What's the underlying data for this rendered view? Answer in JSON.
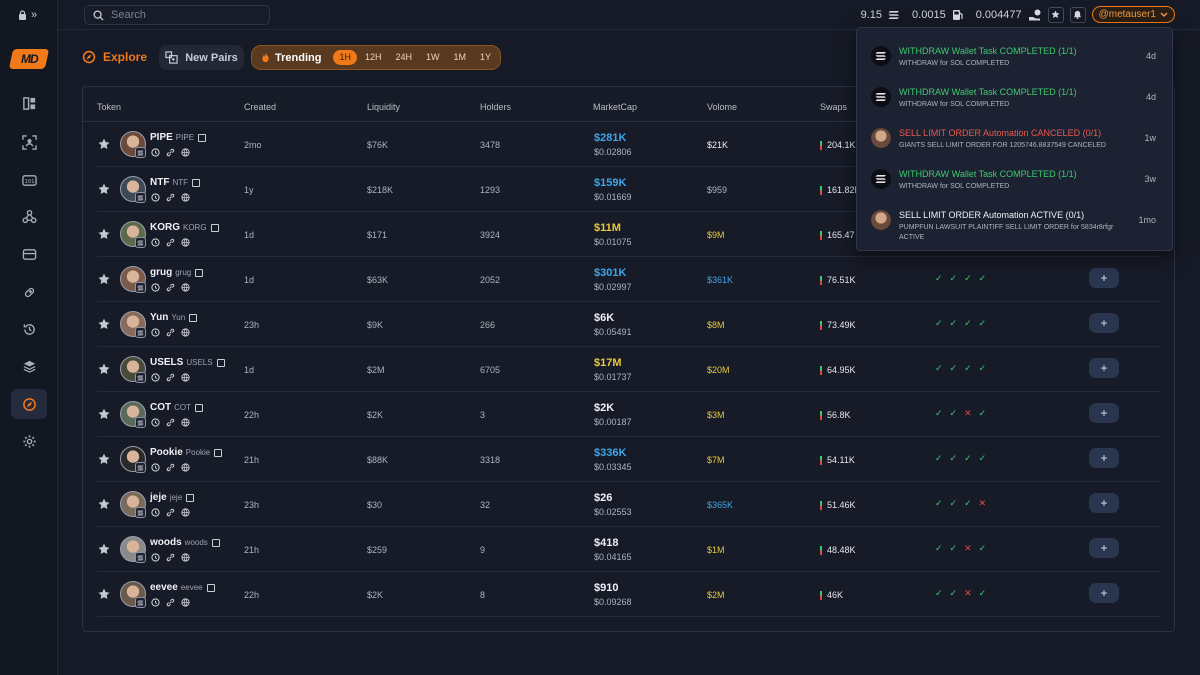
{
  "topbar": {
    "search_placeholder": "Search",
    "stat1": "9.15",
    "stat2": "0.0015",
    "stat3": "0.004477",
    "user": "@metauser1"
  },
  "sidebar": {
    "logo": "MD",
    "items": [
      "dashboard-icon",
      "scan-user-icon",
      "counter-icon",
      "webhook-icon",
      "wallet-icon",
      "pill-icon",
      "history-icon",
      "layers-icon",
      "explore-icon",
      "settings-icon"
    ],
    "active_index": 8
  },
  "toolbar": {
    "explore_label": "Explore",
    "newpairs_label": "New Pairs",
    "trending_label": "Trending",
    "timeframes": [
      "1H",
      "12H",
      "24H",
      "1W",
      "1M",
      "1Y"
    ],
    "active_timeframe": "1H"
  },
  "table": {
    "headers": [
      "Token",
      "Created",
      "Liquidity",
      "Holders",
      "MarketCap",
      "Volome",
      "Swaps"
    ],
    "rows": [
      {
        "name": "PIPE",
        "symbol": "PIPE",
        "created": "2mo",
        "liquidity": "$76K",
        "holders": "3478",
        "mcap": "$281K",
        "mcap_color": "blue",
        "price": "$0.02806",
        "volume": "$21K",
        "volume_color": "white",
        "swaps": "204.1K",
        "checks": [],
        "plus": ""
      },
      {
        "name": "NTF",
        "symbol": "NTF",
        "created": "1y",
        "liquidity": "$218K",
        "holders": "1293",
        "mcap": "$159K",
        "mcap_color": "blue",
        "price": "$0.01669",
        "volume": "$959",
        "volume_color": "gray",
        "swaps": "161.82K",
        "checks": [],
        "plus": ""
      },
      {
        "name": "KORG",
        "symbol": "KORG",
        "created": "1d",
        "liquidity": "$171",
        "holders": "3924",
        "mcap": "$11M",
        "mcap_color": "yellow",
        "price": "$0.01075",
        "volume": "$9M",
        "volume_color": "yellow",
        "swaps": "165.47",
        "checks": [],
        "plus": ""
      },
      {
        "name": "grug",
        "symbol": "grug",
        "created": "1d",
        "liquidity": "$63K",
        "holders": "2052",
        "mcap": "$301K",
        "mcap_color": "blue",
        "price": "$0.02997",
        "volume": "$361K",
        "volume_color": "blue",
        "swaps": "76.51K",
        "checks": [
          "ok",
          "ok",
          "ok",
          "ok"
        ],
        "plus": "+"
      },
      {
        "name": "Yun",
        "symbol": "Yun",
        "created": "23h",
        "liquidity": "$9K",
        "holders": "266",
        "mcap": "$6K",
        "mcap_color": "white",
        "price": "$0.05491",
        "volume": "$8M",
        "volume_color": "yellow",
        "swaps": "73.49K",
        "checks": [
          "ok",
          "ok",
          "ok",
          "ok"
        ],
        "plus": "+"
      },
      {
        "name": "USELS",
        "symbol": "USELS",
        "created": "1d",
        "liquidity": "$2M",
        "holders": "6705",
        "mcap": "$17M",
        "mcap_color": "yellow",
        "price": "$0.01737",
        "volume": "$20M",
        "volume_color": "yellow",
        "swaps": "64.95K",
        "checks": [
          "ok",
          "ok",
          "ok",
          "ok"
        ],
        "plus": "+"
      },
      {
        "name": "COT",
        "symbol": "COT",
        "created": "22h",
        "liquidity": "$2K",
        "holders": "3",
        "mcap": "$2K",
        "mcap_color": "white",
        "price": "$0.00187",
        "volume": "$3M",
        "volume_color": "yellow",
        "swaps": "56.8K",
        "checks": [
          "ok",
          "ok",
          "bad",
          "ok"
        ],
        "plus": "+"
      },
      {
        "name": "Pookie",
        "symbol": "Pookie",
        "created": "21h",
        "liquidity": "$88K",
        "holders": "3318",
        "mcap": "$336K",
        "mcap_color": "blue",
        "price": "$0.03345",
        "volume": "$7M",
        "volume_color": "yellow",
        "swaps": "54.11K",
        "checks": [
          "ok",
          "ok",
          "ok",
          "ok"
        ],
        "plus": "+"
      },
      {
        "name": "jeje",
        "symbol": "jeje",
        "created": "23h",
        "liquidity": "$30",
        "holders": "32",
        "mcap": "$26",
        "mcap_color": "white",
        "price": "$0.02553",
        "volume": "$365K",
        "volume_color": "blue",
        "swaps": "51.46K",
        "checks": [
          "ok",
          "ok",
          "ok",
          "bad"
        ],
        "plus": "+"
      },
      {
        "name": "woods",
        "symbol": "woods",
        "created": "21h",
        "liquidity": "$259",
        "holders": "9",
        "mcap": "$418",
        "mcap_color": "white",
        "price": "$0.04165",
        "volume": "$1M",
        "volume_color": "yellow",
        "swaps": "48.48K",
        "checks": [
          "ok",
          "ok",
          "bad",
          "ok"
        ],
        "plus": "+"
      },
      {
        "name": "eevee",
        "symbol": "eevee",
        "created": "22h",
        "liquidity": "$2K",
        "holders": "8",
        "mcap": "$910",
        "mcap_color": "white",
        "price": "$0.09268",
        "volume": "$2M",
        "volume_color": "yellow",
        "swaps": "46K",
        "checks": [
          "ok",
          "ok",
          "bad",
          "ok"
        ],
        "plus": "+"
      }
    ]
  },
  "notifications": [
    {
      "title": "WITHDRAW Wallet Task COMPLETED (1/1)",
      "sub": "WITHDRAW for SOL COMPLETED",
      "time": "4d",
      "color": "green",
      "icon": "solana"
    },
    {
      "title": "WITHDRAW Wallet Task COMPLETED (1/1)",
      "sub": "WITHDRAW for SOL COMPLETED",
      "time": "4d",
      "color": "green",
      "icon": "solana"
    },
    {
      "title": "SELL LIMIT ORDER Automation CANCELED (0/1)",
      "sub": "GIANTS SELL LIMIT ORDER FOR 1205746.8837549 CANCELED",
      "time": "1w",
      "color": "red",
      "icon": "avatar"
    },
    {
      "title": "WITHDRAW Wallet Task COMPLETED (1/1)",
      "sub": "WITHDRAW for SOL COMPLETED",
      "time": "3w",
      "color": "green",
      "icon": "solana"
    },
    {
      "title": "SELL LIMIT ORDER Automation ACTIVE (0/1)",
      "sub": "PUMPFUN LAWSUIT PLAINTIFF SELL LIMIT ORDER for 5834r8rfgr ACTIVE",
      "time": "1mo",
      "color": "white",
      "icon": "avatar"
    }
  ]
}
